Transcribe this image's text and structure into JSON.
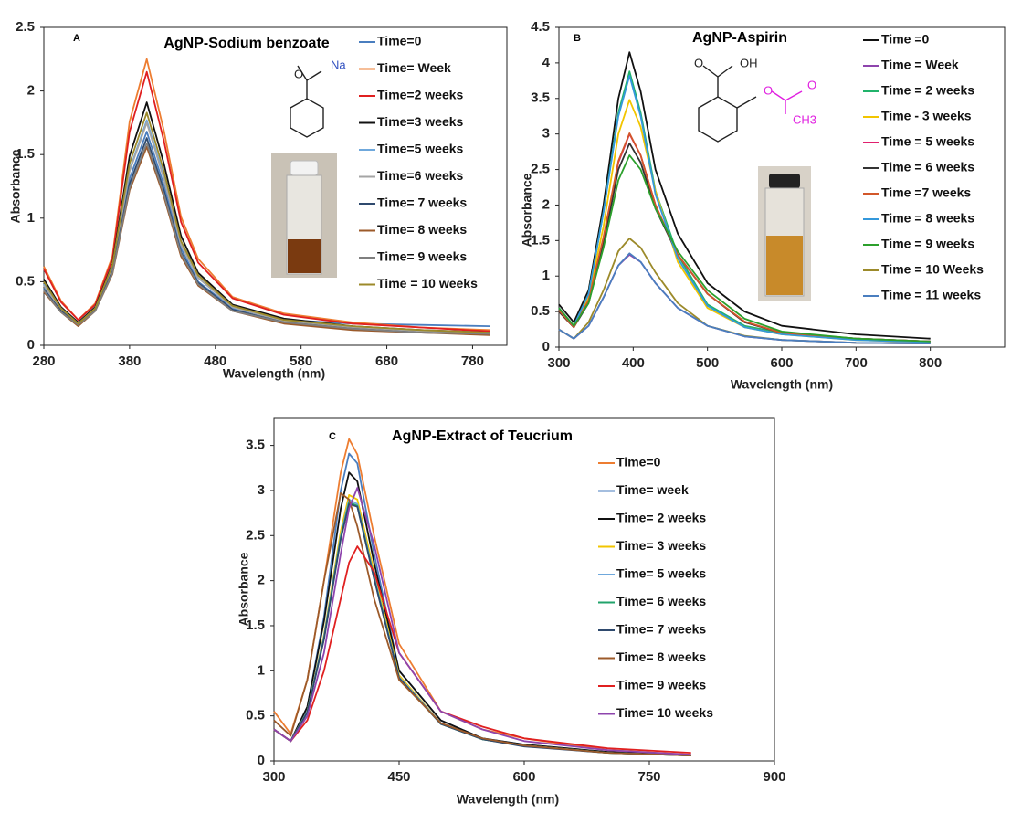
{
  "chart_data": [
    {
      "type": "line",
      "panel": "A",
      "title": "AgNP-Sodium benzoate",
      "x_label": "Wavelength (nm)",
      "y_label": "Absorbance",
      "annotations": [
        "O",
        "Na"
      ],
      "x": [
        280,
        300,
        320,
        340,
        360,
        380,
        400,
        420,
        440,
        460,
        500,
        560,
        640,
        720,
        800
      ],
      "xlim": [
        280,
        820
      ],
      "xticks": [
        280,
        380,
        480,
        580,
        680,
        780
      ],
      "ylim": [
        0,
        2.5
      ],
      "yticks": [
        0,
        0.5,
        1,
        1.5,
        2,
        2.5
      ],
      "series": [
        {
          "name": "Time=0",
          "color": "#4a7ebf",
          "values": [
            0.45,
            0.28,
            0.17,
            0.3,
            0.62,
            1.31,
            1.68,
            1.26,
            0.76,
            0.5,
            0.29,
            0.2,
            0.17,
            0.16,
            0.15
          ]
        },
        {
          "name": "Time= Week",
          "color": "#ed7d31",
          "values": [
            0.62,
            0.35,
            0.2,
            0.33,
            0.7,
            1.76,
            2.25,
            1.69,
            1.01,
            0.68,
            0.38,
            0.25,
            0.18,
            0.14,
            0.12
          ]
        },
        {
          "name": "Time=2 weeks",
          "color": "#e02020",
          "values": [
            0.6,
            0.34,
            0.2,
            0.32,
            0.68,
            1.68,
            2.15,
            1.61,
            0.97,
            0.65,
            0.37,
            0.24,
            0.17,
            0.14,
            0.11
          ]
        },
        {
          "name": "Time=3 weeks",
          "color": "#111111",
          "values": [
            0.52,
            0.3,
            0.18,
            0.3,
            0.64,
            1.49,
            1.91,
            1.43,
            0.86,
            0.57,
            0.32,
            0.21,
            0.15,
            0.12,
            0.1
          ]
        },
        {
          "name": "Time=5 weeks",
          "color": "#6fa8dc",
          "values": [
            0.48,
            0.29,
            0.17,
            0.29,
            0.62,
            1.38,
            1.77,
            1.33,
            0.8,
            0.53,
            0.3,
            0.19,
            0.14,
            0.11,
            0.1
          ]
        },
        {
          "name": "Time=6 weeks",
          "color": "#a5a5a5",
          "values": [
            0.47,
            0.28,
            0.17,
            0.29,
            0.61,
            1.37,
            1.75,
            1.31,
            0.79,
            0.53,
            0.3,
            0.19,
            0.14,
            0.11,
            0.09
          ]
        },
        {
          "name": "Time= 7 weeks",
          "color": "#2f4a6e",
          "values": [
            0.44,
            0.27,
            0.16,
            0.28,
            0.58,
            1.27,
            1.63,
            1.22,
            0.73,
            0.49,
            0.28,
            0.18,
            0.13,
            0.1,
            0.09
          ]
        },
        {
          "name": "Time= 8 weeks",
          "color": "#9c5a2a",
          "values": [
            0.42,
            0.26,
            0.15,
            0.27,
            0.56,
            1.22,
            1.56,
            1.17,
            0.7,
            0.47,
            0.27,
            0.17,
            0.12,
            0.1,
            0.08
          ]
        },
        {
          "name": "Time= 9 weeks",
          "color": "#7f7f7f",
          "values": [
            0.43,
            0.26,
            0.16,
            0.27,
            0.57,
            1.24,
            1.59,
            1.19,
            0.72,
            0.48,
            0.27,
            0.18,
            0.13,
            0.1,
            0.09
          ]
        },
        {
          "name": "Time = 10 weeks",
          "color": "#9c8a2a",
          "values": [
            0.5,
            0.29,
            0.17,
            0.29,
            0.63,
            1.43,
            1.83,
            1.37,
            0.82,
            0.55,
            0.31,
            0.2,
            0.15,
            0.12,
            0.1
          ]
        }
      ]
    },
    {
      "type": "line",
      "panel": "B",
      "title": "AgNP-Aspirin",
      "x_label": "Wavelength (nm)",
      "y_label": "Absorbance",
      "annotations": [
        "O",
        "OH",
        "O",
        "O",
        "CH3"
      ],
      "x": [
        300,
        320,
        340,
        360,
        380,
        395,
        410,
        430,
        460,
        500,
        550,
        600,
        700,
        800
      ],
      "xlim": [
        300,
        900
      ],
      "xticks": [
        300,
        400,
        500,
        600,
        700,
        800
      ],
      "ylim": [
        0,
        4.5
      ],
      "yticks": [
        0,
        0.5,
        1,
        1.5,
        2,
        2.5,
        3,
        3.5,
        4,
        4.5
      ],
      "series": [
        {
          "name": "Time =0",
          "color": "#111111",
          "values": [
            0.6,
            0.35,
            0.8,
            2.0,
            3.5,
            4.15,
            3.6,
            2.5,
            1.6,
            0.9,
            0.5,
            0.3,
            0.18,
            0.12
          ]
        },
        {
          "name": "Time = Week",
          "color": "#8e44ad",
          "values": [
            0.25,
            0.12,
            0.3,
            0.7,
            1.15,
            1.3,
            1.2,
            0.9,
            0.55,
            0.3,
            0.15,
            0.1,
            0.06,
            0.05
          ]
        },
        {
          "name": "Time = 2 weeks",
          "color": "#21b36b",
          "values": [
            0.55,
            0.3,
            0.75,
            1.9,
            3.3,
            3.88,
            3.3,
            2.2,
            1.3,
            0.6,
            0.3,
            0.2,
            0.12,
            0.08
          ]
        },
        {
          "name": "Time - 3 weeks",
          "color": "#f2c500",
          "values": [
            0.5,
            0.28,
            0.7,
            1.7,
            3.0,
            3.48,
            3.1,
            2.2,
            1.2,
            0.55,
            0.28,
            0.18,
            0.1,
            0.07
          ]
        },
        {
          "name": "Time = 5 weeks",
          "color": "#e0206e",
          "values": [
            0.5,
            0.28,
            0.65,
            1.5,
            2.6,
            3.0,
            2.7,
            2.0,
            1.3,
            0.75,
            0.35,
            0.2,
            0.12,
            0.08
          ]
        },
        {
          "name": "Time = 6 weeks",
          "color": "#333333",
          "values": [
            0.5,
            0.28,
            0.62,
            1.45,
            2.5,
            2.87,
            2.6,
            1.95,
            1.3,
            0.75,
            0.35,
            0.2,
            0.12,
            0.08
          ]
        },
        {
          "name": "Time =7 weeks",
          "color": "#d2572a",
          "values": [
            0.52,
            0.28,
            0.66,
            1.55,
            2.62,
            3.01,
            2.7,
            2.0,
            1.3,
            0.75,
            0.36,
            0.2,
            0.12,
            0.08
          ]
        },
        {
          "name": "Time = 8 weeks",
          "color": "#3498db",
          "values": [
            0.55,
            0.3,
            0.75,
            1.9,
            3.25,
            3.82,
            3.25,
            2.15,
            1.25,
            0.58,
            0.28,
            0.18,
            0.1,
            0.07
          ]
        },
        {
          "name": "Time = 9 weeks",
          "color": "#2ca02c",
          "values": [
            0.55,
            0.3,
            0.62,
            1.4,
            2.35,
            2.7,
            2.5,
            1.95,
            1.35,
            0.8,
            0.4,
            0.22,
            0.12,
            0.08
          ]
        },
        {
          "name": "Time = 10 Weeks",
          "color": "#9c8a2a",
          "values": [
            0.25,
            0.12,
            0.35,
            0.8,
            1.35,
            1.53,
            1.4,
            1.05,
            0.62,
            0.3,
            0.16,
            0.1,
            0.06,
            0.05
          ]
        },
        {
          "name": "Time = 11 weeks",
          "color": "#4a7ebf",
          "values": [
            0.25,
            0.12,
            0.3,
            0.7,
            1.15,
            1.32,
            1.2,
            0.9,
            0.55,
            0.3,
            0.15,
            0.1,
            0.06,
            0.05
          ]
        }
      ]
    },
    {
      "type": "line",
      "panel": "C",
      "title": "AgNP-Extract of Teucrium",
      "x_label": "Wavelength (nm)",
      "y_label": "Absorbance",
      "x": [
        300,
        320,
        340,
        360,
        380,
        390,
        400,
        420,
        450,
        500,
        550,
        600,
        700,
        800
      ],
      "xlim": [
        300,
        900
      ],
      "xticks": [
        300,
        450,
        600,
        750,
        900
      ],
      "ylim": [
        0,
        3.8
      ],
      "yticks": [
        0,
        0.5,
        1,
        1.5,
        2,
        2.5,
        3,
        3.5
      ],
      "series": [
        {
          "name": "Time=0",
          "color": "#ed7d31",
          "values": [
            0.55,
            0.3,
            0.9,
            2.0,
            3.2,
            3.57,
            3.4,
            2.5,
            1.3,
            0.55,
            0.35,
            0.25,
            0.12,
            0.07
          ]
        },
        {
          "name": "Time= week",
          "color": "#4a7ebf",
          "values": [
            0.35,
            0.22,
            0.6,
            1.6,
            3.0,
            3.41,
            3.3,
            2.3,
            1.0,
            0.45,
            0.25,
            0.18,
            0.1,
            0.06
          ]
        },
        {
          "name": "Time= 2 weeks",
          "color": "#111111",
          "values": [
            0.35,
            0.22,
            0.6,
            1.55,
            2.8,
            3.2,
            3.1,
            2.2,
            1.0,
            0.45,
            0.25,
            0.18,
            0.1,
            0.06
          ]
        },
        {
          "name": "Time= 3 weeks",
          "color": "#f2c500",
          "values": [
            0.35,
            0.22,
            0.55,
            1.4,
            2.55,
            2.95,
            2.9,
            2.1,
            0.95,
            0.42,
            0.24,
            0.17,
            0.09,
            0.06
          ]
        },
        {
          "name": "Time= 5 weeks",
          "color": "#6fa8dc",
          "values": [
            0.35,
            0.22,
            0.55,
            1.38,
            2.5,
            2.9,
            2.85,
            2.05,
            0.93,
            0.42,
            0.24,
            0.17,
            0.09,
            0.06
          ]
        },
        {
          "name": "Time= 6 weeks",
          "color": "#21a36b",
          "values": [
            0.35,
            0.22,
            0.54,
            1.36,
            2.48,
            2.87,
            2.83,
            2.03,
            0.92,
            0.41,
            0.24,
            0.17,
            0.09,
            0.06
          ]
        },
        {
          "name": "Time= 7 weeks",
          "color": "#2f4a6e",
          "values": [
            0.35,
            0.22,
            0.54,
            1.35,
            2.46,
            2.85,
            2.82,
            2.02,
            0.92,
            0.41,
            0.24,
            0.16,
            0.09,
            0.06
          ]
        },
        {
          "name": "Time= 8 weeks",
          "color": "#9c5a2a",
          "values": [
            0.45,
            0.28,
            0.9,
            2.0,
            2.97,
            2.9,
            2.6,
            1.8,
            0.9,
            0.42,
            0.25,
            0.17,
            0.09,
            0.06
          ]
        },
        {
          "name": "Time= 9 weeks",
          "color": "#e02020",
          "values": [
            0.35,
            0.22,
            0.45,
            1.0,
            1.8,
            2.2,
            2.38,
            2.1,
            1.2,
            0.55,
            0.38,
            0.25,
            0.14,
            0.09
          ]
        },
        {
          "name": "Time= 10 weeks",
          "color": "#8e44ad",
          "values": [
            0.35,
            0.22,
            0.5,
            1.2,
            2.3,
            2.8,
            3.03,
            2.4,
            1.2,
            0.55,
            0.35,
            0.22,
            0.12,
            0.07
          ]
        }
      ]
    }
  ]
}
